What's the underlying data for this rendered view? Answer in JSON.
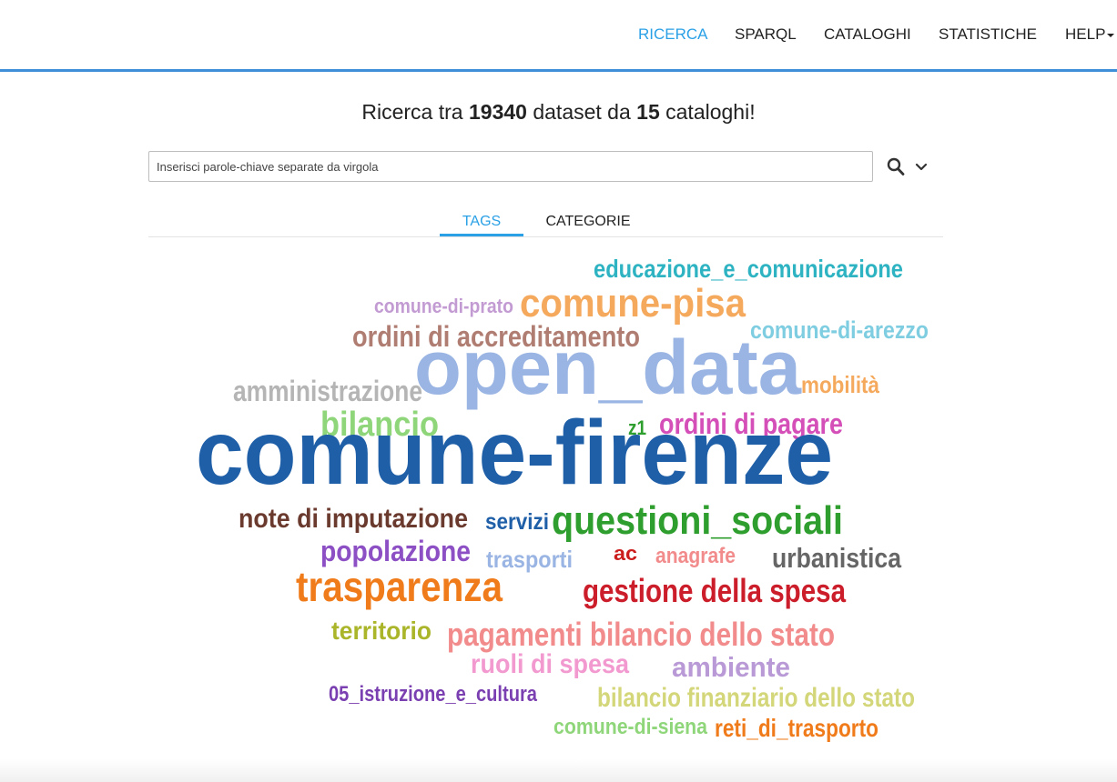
{
  "nav": {
    "items": [
      {
        "label": "RICERCA",
        "active": true
      },
      {
        "label": "SPARQL",
        "active": false
      },
      {
        "label": "CATALOGHI",
        "active": false
      },
      {
        "label": "STATISTICHE",
        "active": false
      },
      {
        "label": "HELP",
        "active": false,
        "dropdown": true
      }
    ]
  },
  "headline": {
    "prefix": "Ricerca tra ",
    "dataset_count": "19340",
    "middle": " dataset da ",
    "catalog_count": "15",
    "suffix": " cataloghi!"
  },
  "search": {
    "placeholder": "Inserisci parole-chiave separate da virgola",
    "value": "",
    "search_icon": "search-icon",
    "expand_icon": "chevron-down-icon"
  },
  "tabs": [
    {
      "label": "TAGS",
      "active": true
    },
    {
      "label": "CATEGORIE",
      "active": false
    }
  ],
  "tag_cloud": {
    "tags": [
      {
        "text": "educazione_e_comunicazione",
        "color": "#2eb3c2"
      },
      {
        "text": "comune-di-prato",
        "color": "#c39bd3"
      },
      {
        "text": "comune-pisa",
        "color": "#f5a95d"
      },
      {
        "text": "comune-di-arezzo",
        "color": "#7fcde0"
      },
      {
        "text": "ordini di accreditamento",
        "color": "#b07d72"
      },
      {
        "text": "open_data",
        "color": "#9ab5e3"
      },
      {
        "text": "mobilità",
        "color": "#f5a95d"
      },
      {
        "text": "amministrazione",
        "color": "#b5b5b5"
      },
      {
        "text": "bilancio",
        "color": "#8fd67a"
      },
      {
        "text": "z1",
        "color": "#2e9e2e"
      },
      {
        "text": "ordini di pagare",
        "color": "#d54fb8"
      },
      {
        "text": "comune-firenze",
        "color": "#1f5fa8"
      },
      {
        "text": "note di imputazione",
        "color": "#6b3a2e"
      },
      {
        "text": "servizi",
        "color": "#1f5fa8"
      },
      {
        "text": "questioni_sociali",
        "color": "#2e9e2e"
      },
      {
        "text": "popolazione",
        "color": "#8c4fc4"
      },
      {
        "text": "trasporti",
        "color": "#9ab5e3"
      },
      {
        "text": "ac",
        "color": "#cc1d1d"
      },
      {
        "text": "anagrafe",
        "color": "#f28b8b"
      },
      {
        "text": "urbanistica",
        "color": "#666666"
      },
      {
        "text": "trasparenza",
        "color": "#f07b1a"
      },
      {
        "text": "gestione della spesa",
        "color": "#cc1d2a"
      },
      {
        "text": "territorio",
        "color": "#aab52a"
      },
      {
        "text": "pagamenti bilancio dello stato",
        "color": "#f28b8b"
      },
      {
        "text": "ruoli di spesa",
        "color": "#f29ad0"
      },
      {
        "text": "ambiente",
        "color": "#b99ad6"
      },
      {
        "text": "05_istruzione_e_cultura",
        "color": "#7a3fb0"
      },
      {
        "text": "bilancio finanziario dello stato",
        "color": "#d4d67a"
      },
      {
        "text": "comune-di-siena",
        "color": "#8fd67a"
      },
      {
        "text": "reti_di_trasporto",
        "color": "#f07b1a"
      }
    ]
  }
}
